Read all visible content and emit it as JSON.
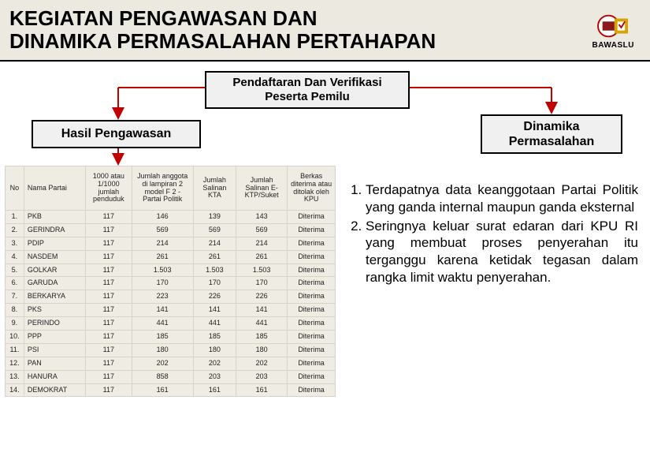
{
  "header": {
    "title_line1": "KEGIATAN PENGAWASAN DAN",
    "title_line2": "DINAMIKA PERMASALAHAN PERTAHAPAN",
    "org_label": "BAWASLU"
  },
  "boxes": {
    "center": "Pendaftaran Dan Verifikasi Peserta Pemilu",
    "left": "Hasil Pengawasan",
    "right": "Dinamika Permasalahan"
  },
  "table": {
    "headers": {
      "no": "No",
      "nama": "Nama Partai",
      "c1": "1000 atau 1/1000 jumlah penduduk",
      "c2": "Jumlah anggota di lampiran 2 model F 2 - Partai Politik",
      "c3": "Jumlah Salinan KTA",
      "c4": "Jumlah Salinan E-KTP/Suket",
      "c5": "Berkas diterima atau ditolak oleh KPU"
    },
    "rows": [
      {
        "no": "1.",
        "nm": "PKB",
        "c1": "117",
        "c2": "146",
        "c3": "139",
        "c4": "143",
        "c5": "Diterima"
      },
      {
        "no": "2.",
        "nm": "GERINDRA",
        "c1": "117",
        "c2": "569",
        "c3": "569",
        "c4": "569",
        "c5": "Diterima"
      },
      {
        "no": "3.",
        "nm": "PDIP",
        "c1": "117",
        "c2": "214",
        "c3": "214",
        "c4": "214",
        "c5": "Diterima"
      },
      {
        "no": "4.",
        "nm": "NASDEM",
        "c1": "117",
        "c2": "261",
        "c3": "261",
        "c4": "261",
        "c5": "Diterima"
      },
      {
        "no": "5.",
        "nm": "GOLKAR",
        "c1": "117",
        "c2": "1.503",
        "c3": "1.503",
        "c4": "1.503",
        "c5": "Diterima"
      },
      {
        "no": "6.",
        "nm": "GARUDA",
        "c1": "117",
        "c2": "170",
        "c3": "170",
        "c4": "170",
        "c5": "Diterima"
      },
      {
        "no": "7.",
        "nm": "BERKARYA",
        "c1": "117",
        "c2": "223",
        "c3": "226",
        "c4": "226",
        "c5": "Diterima"
      },
      {
        "no": "8.",
        "nm": "PKS",
        "c1": "117",
        "c2": "141",
        "c3": "141",
        "c4": "141",
        "c5": "Diterima"
      },
      {
        "no": "9.",
        "nm": "PERINDO",
        "c1": "117",
        "c2": "441",
        "c3": "441",
        "c4": "441",
        "c5": "Diterima"
      },
      {
        "no": "10.",
        "nm": "PPP",
        "c1": "117",
        "c2": "185",
        "c3": "185",
        "c4": "185",
        "c5": "Diterima"
      },
      {
        "no": "11.",
        "nm": "PSI",
        "c1": "117",
        "c2": "180",
        "c3": "180",
        "c4": "180",
        "c5": "Diterima"
      },
      {
        "no": "12.",
        "nm": "PAN",
        "c1": "117",
        "c2": "202",
        "c3": "202",
        "c4": "202",
        "c5": "Diterima"
      },
      {
        "no": "13.",
        "nm": "HANURA",
        "c1": "117",
        "c2": "858",
        "c3": "203",
        "c4": "203",
        "c5": "Diterima"
      },
      {
        "no": "14.",
        "nm": "DEMOKRAT",
        "c1": "117",
        "c2": "161",
        "c3": "161",
        "c4": "161",
        "c5": "Diterima"
      }
    ]
  },
  "issues": {
    "item1": "Terdapatnya data keanggotaan Partai Politik yang ganda internal maupun ganda eksternal",
    "item2": "Seringnya keluar surat edaran dari KPU RI yang membuat proses penyerahan itu terganggu karena ketidak tegasan dalam rangka limit waktu penyerahan."
  },
  "colors": {
    "connector": "#c00000",
    "arrow_fill": "#c00000",
    "box_bg": "#f0f0f0",
    "table_cell_bg": "#efece3"
  }
}
